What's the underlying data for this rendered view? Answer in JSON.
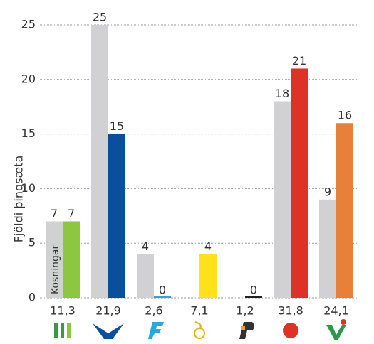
{
  "chart_data": {
    "type": "bar",
    "y_label": "Fjöldi þingsæta",
    "categories": [
      "11,3",
      "21,9",
      "2,6",
      "7,1",
      "1,2",
      "31,8",
      "24,1"
    ],
    "series": [
      {
        "name": "Kosningar",
        "color": "#d1d1d3",
        "values": [
          7,
          25,
          4,
          null,
          null,
          18,
          9
        ]
      },
      {
        "colors": [
          "#8dc63f",
          "#0a4f9e",
          "#2aa7df",
          "#ffe11a",
          "#222222",
          "#e03127",
          "#e8803a"
        ],
        "values": [
          7,
          15,
          0,
          4,
          0,
          21,
          16
        ]
      }
    ],
    "ylim": [
      0,
      25
    ],
    "yticks": [
      0,
      5,
      10,
      15,
      20,
      25
    ],
    "grid": true
  }
}
